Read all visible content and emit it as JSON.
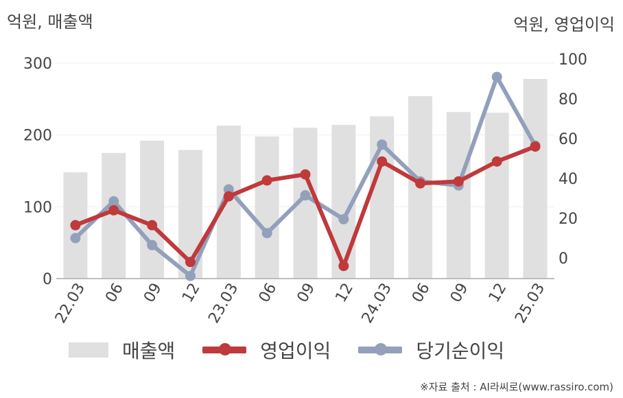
{
  "header": {
    "left_unit": "억원, 매출액",
    "right_unit": "억원, 영업이익"
  },
  "legend": {
    "sales": "매출액",
    "op": "영업이익",
    "net": "당기순이익"
  },
  "source": "※자료 출처 : AI라씨로(www.rassiro.com)",
  "colors": {
    "bar": "#e0e0e0",
    "op": "#c0393b",
    "net": "#93a0bb",
    "grid": "#eeeeee",
    "axis": "#aaaaaa"
  },
  "chart_data": {
    "type": "bar",
    "categories": [
      "22.03",
      "06",
      "09",
      "12",
      "23.03",
      "06",
      "09",
      "12",
      "24.03",
      "06",
      "09",
      "12",
      "25.03"
    ],
    "left_axis": {
      "ticks": [
        0,
        100,
        200,
        300
      ],
      "range": [
        0,
        300
      ]
    },
    "right_axis": {
      "ticks": [
        0,
        20,
        40,
        60,
        80,
        100
      ],
      "range": [
        -10,
        100
      ]
    },
    "series": [
      {
        "name": "매출액",
        "type": "bar",
        "axis": "left",
        "values": [
          148,
          175,
          192,
          179,
          213,
          198,
          210,
          214,
          226,
          254,
          232,
          231,
          278
        ]
      },
      {
        "name": "영업이익",
        "type": "line",
        "axis": "right",
        "values": [
          16.5,
          24,
          16.5,
          -2,
          31,
          39,
          42,
          -4,
          48.5,
          37.5,
          38.5,
          48.5,
          56
        ]
      },
      {
        "name": "당기순이익",
        "type": "line",
        "axis": "right",
        "values": [
          10,
          28.5,
          6.5,
          -9,
          34.5,
          12.5,
          31.5,
          19.5,
          57,
          38.5,
          36.5,
          91,
          56.5
        ]
      }
    ]
  }
}
